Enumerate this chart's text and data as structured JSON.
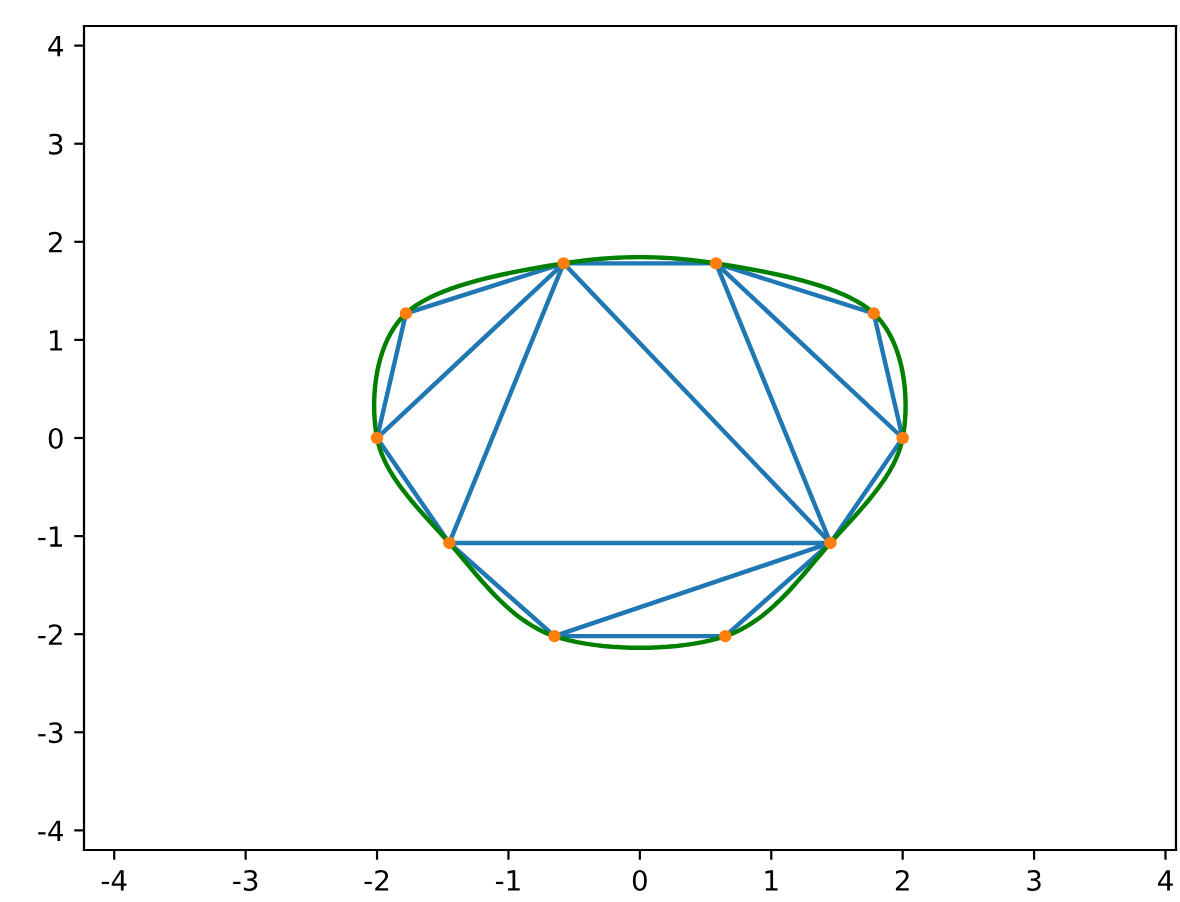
{
  "chart_data": {
    "type": "line",
    "xlim": [
      -4.23,
      4.08
    ],
    "ylim": [
      -4.2,
      4.2
    ],
    "xticks": [
      -4,
      -3,
      -2,
      -1,
      0,
      1,
      2,
      3,
      4
    ],
    "yticks": [
      -4,
      -3,
      -2,
      -1,
      0,
      1,
      2,
      3,
      4
    ],
    "grid": false,
    "legend": false,
    "series": [
      {
        "color": "#1f77b4",
        "marker": "none",
        "x": [
          -0.58,
          0.58,
          null,
          -1.78,
          -0.58,
          null,
          -1.78,
          -2.0,
          null,
          -2.0,
          -0.58,
          null,
          -2.0,
          -1.45,
          null,
          -1.45,
          -0.58,
          null,
          -1.45,
          1.45,
          null,
          -0.58,
          1.45,
          null,
          0.58,
          1.45,
          null,
          0.58,
          1.78,
          null,
          0.58,
          2.0,
          null,
          1.78,
          2.0,
          null,
          2.0,
          1.45,
          null,
          -1.45,
          -0.65,
          null,
          -0.65,
          0.65,
          null,
          -0.65,
          1.45,
          null,
          0.65,
          1.45
        ],
        "values": [
          1.78,
          1.78,
          null,
          1.27,
          1.78,
          null,
          1.27,
          0.0,
          null,
          0.0,
          1.78,
          null,
          0.0,
          -1.07,
          null,
          -1.07,
          1.78,
          null,
          -1.07,
          -1.07,
          null,
          1.78,
          -1.07,
          null,
          1.78,
          -1.07,
          null,
          1.78,
          1.27,
          null,
          1.78,
          0.0,
          null,
          1.27,
          0.0,
          null,
          0.0,
          -1.07,
          null,
          -1.07,
          -2.02,
          null,
          -2.02,
          -2.02,
          null,
          -2.02,
          -1.07,
          null,
          -2.02,
          -1.07
        ]
      },
      {
        "type": "scatter",
        "color": "#ff7f0e",
        "marker": "circle",
        "x": [
          -0.58,
          0.58,
          1.78,
          2.0,
          1.45,
          0.65,
          -0.65,
          -1.45,
          -2.0,
          -1.78
        ],
        "values": [
          1.78,
          1.78,
          1.27,
          0.0,
          -1.07,
          -2.02,
          -2.02,
          -1.07,
          0.0,
          1.27
        ]
      }
    ]
  }
}
